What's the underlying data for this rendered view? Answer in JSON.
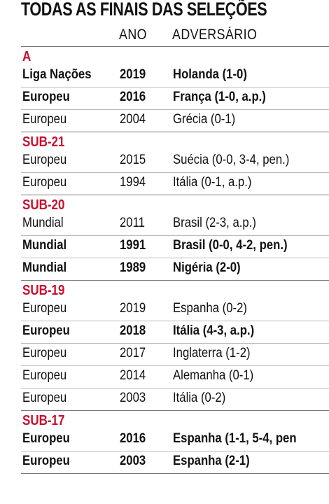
{
  "header": {
    "title": "TODAS AS FINAIS DAS SELEÇÕES",
    "columns": [
      "ANO",
      "ADVERSÁRIO"
    ]
  },
  "sections": [
    {
      "label": "A",
      "rows": [
        {
          "cells": [
            "Liga Nações",
            "2019",
            "Holanda (1-0)"
          ],
          "bold": true
        },
        {
          "cells": [
            "Europeu",
            "2016",
            "França (1-0, a.p.)"
          ],
          "bold": true
        },
        {
          "cells": [
            "Europeu",
            "2004",
            "Grécia (0-1)"
          ],
          "bold": false
        }
      ]
    },
    {
      "label": "SUB-21",
      "rows": [
        {
          "cells": [
            "Europeu",
            "2015",
            "Suécia (0-0, 3-4, pen.)"
          ],
          "bold": false
        },
        {
          "cells": [
            "Europeu",
            "1994",
            "Itália (0-1, a.p.)"
          ],
          "bold": false
        }
      ]
    },
    {
      "label": "SUB-20",
      "rows": [
        {
          "cells": [
            "Mundial",
            "2011",
            "Brasil (2-3, a.p.)"
          ],
          "bold": false
        },
        {
          "cells": [
            "Mundial",
            "1991",
            "Brasil (0-0, 4-2, pen.)"
          ],
          "bold": true
        },
        {
          "cells": [
            "Mundial",
            "1989",
            "Nigéria (2-0)"
          ],
          "bold": true
        }
      ]
    },
    {
      "label": "SUB-19",
      "rows": [
        {
          "cells": [
            "Europeu",
            "2019",
            "Espanha (0-2)"
          ],
          "bold": false
        },
        {
          "cells": [
            "Europeu",
            "2018",
            "Itália (4-3, a.p.)"
          ],
          "bold": true
        },
        {
          "cells": [
            "Europeu",
            "2017",
            "Inglaterra (1-2)"
          ],
          "bold": false
        },
        {
          "cells": [
            "Europeu",
            "2014",
            "Alemanha (0-1)"
          ],
          "bold": false
        },
        {
          "cells": [
            "Europeu",
            "2003",
            "Itália (0-2)"
          ],
          "bold": false
        }
      ]
    },
    {
      "label": "SUB-17",
      "rows": [
        {
          "cells": [
            "Europeu",
            "2016",
            "Espanha (1-1, 5-4, pen"
          ],
          "bold": true
        },
        {
          "cells": [
            "Europeu",
            "2003",
            "Espanha (2-1)"
          ],
          "bold": true
        }
      ]
    }
  ]
}
